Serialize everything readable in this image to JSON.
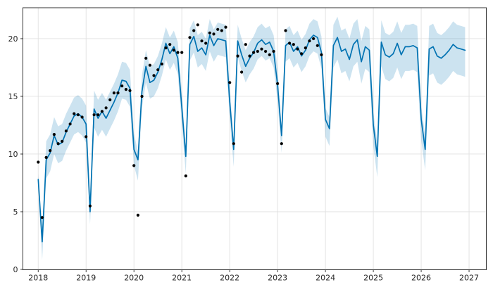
{
  "chart_data": {
    "type": "line",
    "title": "",
    "xlabel": "",
    "ylabel": "",
    "grid": true,
    "legend_position": "none",
    "x_axis": {
      "min": 2017.68,
      "max": 2027.36,
      "ticks": [
        2018,
        2019,
        2020,
        2021,
        2022,
        2023,
        2024,
        2025,
        2026,
        2027
      ],
      "tick_labels": [
        "2018",
        "2019",
        "2020",
        "2021",
        "2022",
        "2023",
        "2024",
        "2025",
        "2026",
        "2027"
      ]
    },
    "y_axis": {
      "min": -0.03,
      "max": 22.68,
      "ticks": [
        0,
        5,
        10,
        15,
        20
      ],
      "tick_labels": [
        "0",
        "5",
        "10",
        "15",
        "20"
      ]
    },
    "line": {
      "name": "forecast-yhat",
      "x_start": 2018.0,
      "x_step": 0.0833333,
      "yhat": [
        7.8,
        2.4,
        9.5,
        10.1,
        11.6,
        10.8,
        11.0,
        11.9,
        12.6,
        13.3,
        13.5,
        13.2,
        12.6,
        5.0,
        13.9,
        13.1,
        13.7,
        13.1,
        13.8,
        14.5,
        15.3,
        16.4,
        16.3,
        15.7,
        10.4,
        9.5,
        15.4,
        17.6,
        16.2,
        16.4,
        17.1,
        18.2,
        19.6,
        18.7,
        19.3,
        18.3,
        14.0,
        9.8,
        19.5,
        20.2,
        18.9,
        19.2,
        18.6,
        20.3,
        19.4,
        20.0,
        19.9,
        19.8,
        14.5,
        10.4,
        19.8,
        18.6,
        17.6,
        18.3,
        18.8,
        19.6,
        19.9,
        19.5,
        19.7,
        18.9,
        16.0,
        11.6,
        19.4,
        19.7,
        18.9,
        19.3,
        18.5,
        19.0,
        19.9,
        20.3,
        20.1,
        18.8,
        13.0,
        12.2,
        19.4,
        20.1,
        18.9,
        19.1,
        18.2,
        19.5,
        19.9,
        18.0,
        19.3,
        19.0,
        12.5,
        9.8,
        19.7,
        18.6,
        18.4,
        18.7,
        19.6,
        18.6,
        19.3,
        19.3,
        19.4,
        19.2,
        13.0,
        10.4,
        19.1,
        19.3,
        18.5,
        18.3,
        18.6,
        19.0,
        19.5,
        19.2,
        19.1,
        19.0
      ],
      "lower": [
        7.3,
        0.8,
        7.9,
        8.5,
        10.0,
        9.2,
        9.4,
        10.3,
        11.0,
        11.7,
        11.9,
        11.6,
        11.0,
        3.9,
        12.3,
        11.5,
        12.1,
        11.5,
        12.2,
        12.9,
        13.7,
        14.8,
        14.7,
        14.1,
        9.0,
        7.7,
        14.0,
        16.2,
        14.8,
        15.0,
        15.7,
        16.8,
        18.2,
        17.3,
        17.9,
        16.9,
        12.6,
        8.3,
        18.1,
        18.8,
        17.5,
        17.8,
        17.2,
        18.9,
        18.0,
        18.6,
        18.5,
        18.4,
        13.1,
        8.9,
        18.4,
        17.2,
        16.2,
        16.9,
        17.4,
        18.2,
        18.5,
        18.1,
        18.3,
        17.5,
        14.6,
        10.1,
        18.0,
        18.3,
        17.5,
        17.9,
        17.1,
        17.6,
        18.5,
        18.9,
        18.7,
        17.4,
        11.5,
        10.7,
        17.5,
        18.2,
        17.0,
        17.2,
        16.3,
        17.6,
        18.0,
        16.1,
        17.4,
        17.1,
        10.7,
        8.0,
        17.6,
        16.5,
        16.3,
        16.6,
        17.5,
        16.5,
        17.2,
        17.2,
        17.3,
        17.1,
        11.2,
        8.6,
        16.8,
        17.0,
        16.2,
        16.0,
        16.3,
        16.7,
        17.2,
        16.9,
        16.8,
        16.7
      ],
      "upper": [
        8.3,
        3.0,
        11.1,
        11.7,
        13.2,
        12.4,
        12.6,
        13.5,
        14.2,
        14.9,
        15.1,
        14.8,
        14.2,
        5.6,
        15.5,
        14.7,
        15.3,
        14.7,
        15.4,
        16.1,
        16.9,
        18.0,
        17.9,
        17.3,
        11.8,
        10.2,
        16.8,
        19.0,
        17.6,
        17.8,
        18.5,
        19.6,
        21.0,
        20.1,
        20.7,
        19.7,
        15.4,
        10.4,
        20.9,
        21.6,
        20.3,
        20.6,
        20.0,
        21.7,
        20.8,
        21.4,
        21.3,
        21.2,
        15.9,
        11.0,
        21.2,
        20.0,
        19.0,
        19.7,
        20.2,
        21.0,
        21.3,
        20.9,
        21.1,
        20.3,
        17.4,
        12.2,
        20.8,
        21.1,
        20.3,
        20.7,
        19.9,
        20.4,
        21.3,
        21.7,
        21.5,
        20.2,
        14.0,
        13.2,
        21.2,
        21.9,
        20.7,
        20.9,
        20.0,
        21.3,
        21.7,
        19.8,
        21.1,
        20.8,
        13.7,
        11.0,
        21.6,
        20.5,
        20.3,
        20.6,
        21.5,
        20.5,
        21.2,
        21.2,
        21.3,
        21.1,
        14.2,
        11.6,
        21.1,
        21.3,
        20.5,
        20.3,
        20.6,
        21.0,
        21.5,
        21.2,
        21.1,
        21.0
      ]
    },
    "observations": {
      "name": "historical-data-points",
      "x_start": 2018.0,
      "x_step": 0.0833333,
      "values": [
        9.3,
        4.5,
        9.7,
        10.3,
        11.7,
        10.9,
        11.1,
        12.0,
        12.6,
        13.5,
        13.4,
        13.2,
        11.5,
        5.5,
        13.4,
        13.4,
        13.7,
        14.0,
        14.7,
        15.3,
        15.3,
        15.9,
        15.6,
        15.5,
        9.0,
        4.7,
        15.0,
        18.3,
        17.7,
        16.8,
        17.3,
        17.8,
        19.2,
        19.5,
        19.0,
        18.8,
        18.8,
        8.1,
        20.1,
        20.7,
        21.2,
        19.8,
        19.6,
        20.5,
        20.4,
        20.8,
        20.7,
        21.0,
        16.2,
        10.9,
        18.5,
        17.1,
        19.5,
        18.5,
        18.8,
        18.9,
        19.1,
        18.9,
        18.6,
        18.9,
        16.1,
        10.9,
        20.7,
        19.6,
        19.5,
        19.1,
        18.7,
        19.2,
        19.8,
        20.0,
        19.4,
        18.6
      ]
    }
  },
  "colors": {
    "line": "#0072B2",
    "band_fill": "rgba(0,114,178,0.2)",
    "dots": "#000000",
    "grid": "#e0e0e0",
    "spine": "#333333",
    "tick": "#262626",
    "tick_label": "#262626",
    "background": "#ffffff"
  }
}
